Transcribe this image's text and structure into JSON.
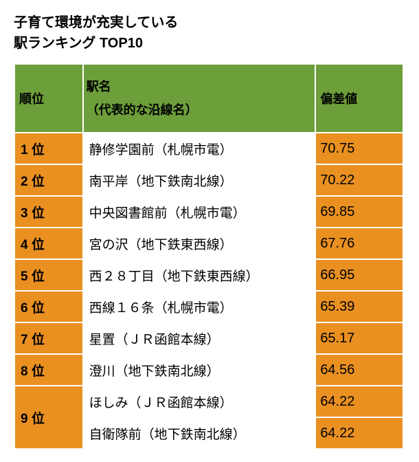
{
  "title_line1": "子育て環境が充実している",
  "title_line2": "駅ランキング TOP10",
  "header": {
    "rank": "順位",
    "station_line1": "駅名",
    "station_line2": "（代表的な沿線名）",
    "score": "偏差値"
  },
  "colors": {
    "header_bg": "#6c9e3a",
    "rank_bg": "#e99021",
    "score_bg": "#e99021",
    "body_bg": "#ffffff",
    "border": "#ffffff",
    "text": "#000000"
  },
  "rows": [
    {
      "rank": "1 位",
      "station": "静修学園前（札幌市電）",
      "score": "70.75",
      "rowspan": 1
    },
    {
      "rank": "2 位",
      "station": "南平岸（地下鉄南北線）",
      "score": "70.22",
      "rowspan": 1
    },
    {
      "rank": "3 位",
      "station": "中央図書館前（札幌市電）",
      "score": "69.85",
      "rowspan": 1
    },
    {
      "rank": "4 位",
      "station": "宮の沢（地下鉄東西線）",
      "score": "67.76",
      "rowspan": 1
    },
    {
      "rank": "5 位",
      "station": "西２８丁目（地下鉄東西線）",
      "score": "66.95",
      "rowspan": 1
    },
    {
      "rank": "6 位",
      "station": "西線１６条（札幌市電）",
      "score": "65.39",
      "rowspan": 1
    },
    {
      "rank": "7 位",
      "station": "星置（ＪＲ函館本線）",
      "score": "65.17",
      "rowspan": 1
    },
    {
      "rank": "8 位",
      "station": "澄川（地下鉄南北線）",
      "score": "64.56",
      "rowspan": 1
    },
    {
      "rank": "9 位",
      "station": "ほしみ（ＪＲ函館本線）",
      "score": "64.22",
      "rowspan": 2
    },
    {
      "rank": "",
      "station": "自衛隊前（地下鉄南北線）",
      "score": "64.22",
      "rowspan": 0
    }
  ]
}
